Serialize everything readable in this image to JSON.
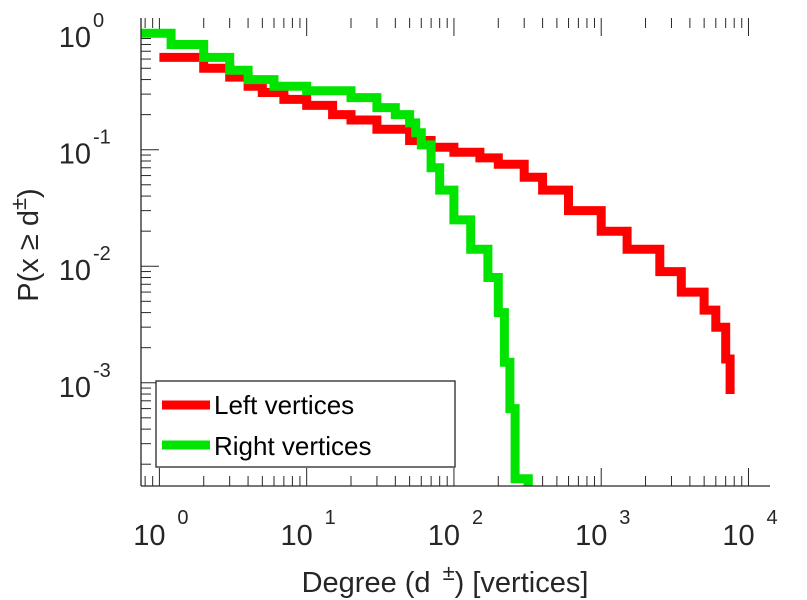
{
  "chart_data": {
    "type": "line",
    "scale": "log-log",
    "title": "",
    "xlabel": "Degree (d  ±) [vertices]",
    "xlabel_prefix": "Degree (d",
    "xlabel_superscript": "±",
    "xlabel_suffix": ") [vertices]",
    "ylabel": "P(x ≥ d±)",
    "ylabel_main": "P(x ≥ d",
    "ylabel_superscript": "±",
    "ylabel_close": ")",
    "xlim": [
      0.75,
      14000
    ],
    "ylim": [
      0.00013,
      1.35
    ],
    "x_ticks": [
      {
        "base": "10",
        "exp": "0",
        "value": 1
      },
      {
        "base": "10",
        "exp": "1",
        "value": 10
      },
      {
        "base": "10",
        "exp": "2",
        "value": 100
      },
      {
        "base": "10",
        "exp": "3",
        "value": 1000
      },
      {
        "base": "10",
        "exp": "4",
        "value": 10000
      }
    ],
    "y_ticks": [
      {
        "base": "10",
        "exp": "0",
        "value": 1
      },
      {
        "base": "10",
        "exp": "-1",
        "value": 0.1
      },
      {
        "base": "10",
        "exp": "-2",
        "value": 0.01
      },
      {
        "base": "10",
        "exp": "-3",
        "value": 0.001
      }
    ],
    "grid": false,
    "legend_position": "bottom-left",
    "series": [
      {
        "name": "Left vertices",
        "color": "#ff0000",
        "x": [
          1,
          2,
          3,
          4,
          5,
          7,
          10,
          15,
          20,
          30,
          50,
          70,
          100,
          150,
          200,
          300,
          400,
          600,
          1000,
          1500,
          2500,
          3500,
          5000,
          6000,
          7000,
          7500
        ],
        "y": [
          0.62,
          0.5,
          0.42,
          0.35,
          0.31,
          0.27,
          0.24,
          0.2,
          0.18,
          0.15,
          0.12,
          0.105,
          0.095,
          0.085,
          0.075,
          0.058,
          0.045,
          0.03,
          0.02,
          0.014,
          0.009,
          0.006,
          0.0042,
          0.003,
          0.0016,
          0.0008
        ]
      },
      {
        "name": "Right vertices",
        "color": "#00e400",
        "x": [
          0.75,
          1.2,
          2,
          3,
          4,
          6,
          10,
          20,
          30,
          40,
          50,
          55,
          60,
          70,
          80,
          100,
          130,
          170,
          200,
          220,
          240,
          260,
          320
        ],
        "y": [
          1.0,
          0.8,
          0.62,
          0.48,
          0.4,
          0.35,
          0.32,
          0.28,
          0.23,
          0.2,
          0.17,
          0.14,
          0.11,
          0.07,
          0.045,
          0.025,
          0.014,
          0.008,
          0.004,
          0.0015,
          0.0006,
          0.00015,
          0.00013
        ]
      }
    ]
  }
}
